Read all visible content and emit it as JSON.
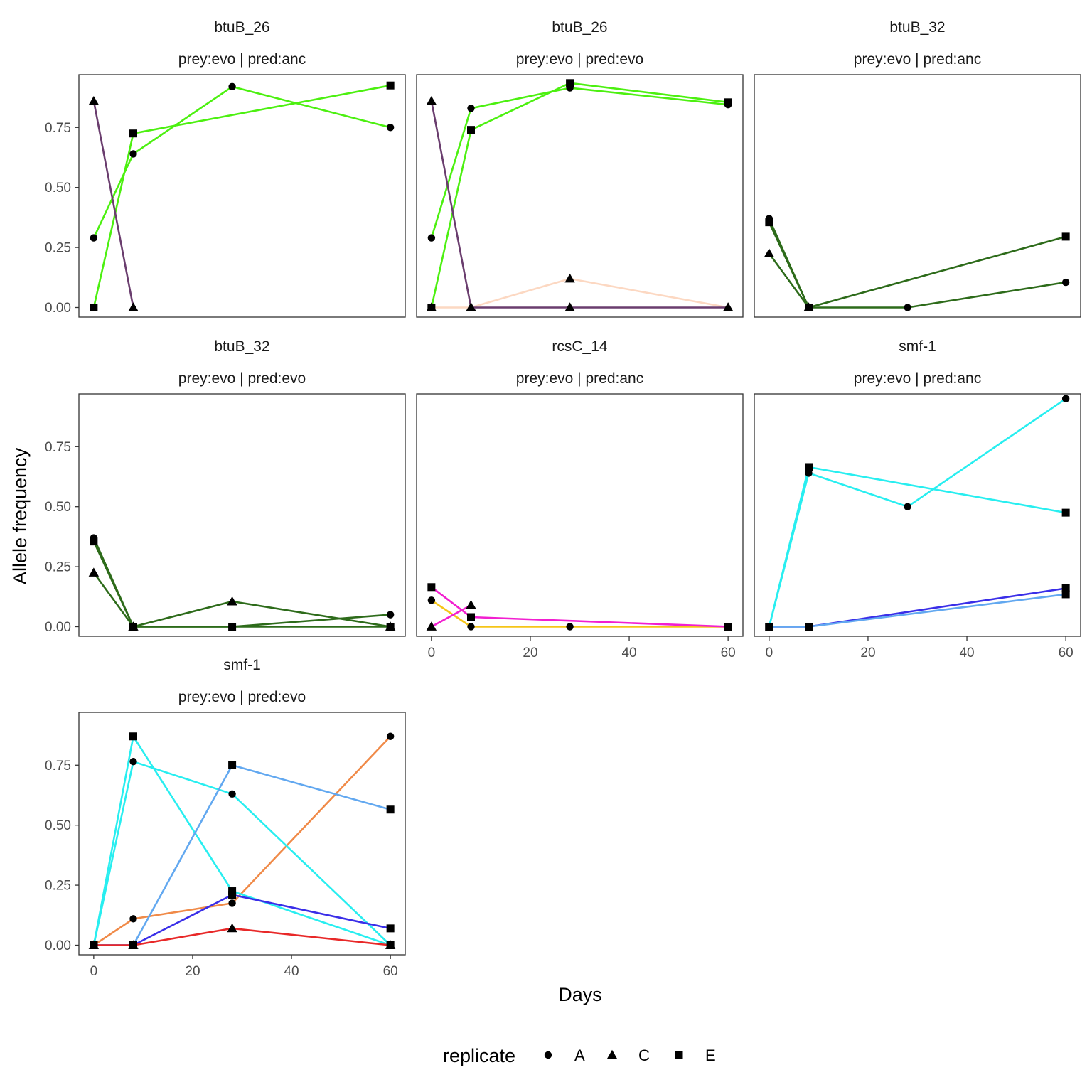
{
  "chart_data": {
    "type": "line",
    "xlabel": "Days",
    "ylabel": "Allele frequency",
    "xlim": [
      -3,
      63
    ],
    "ylim": [
      -0.04,
      0.97
    ],
    "x_ticks": [
      0,
      20,
      40,
      60
    ],
    "x_tick_labels": [
      "0",
      "20",
      "40",
      "60"
    ],
    "y_ticks": [
      0,
      0.25,
      0.5,
      0.75
    ],
    "y_tick_labels": [
      "0.00",
      "0.25",
      "0.50",
      "0.75"
    ],
    "grid": false,
    "legend": {
      "title": "replicate",
      "position": "bottom",
      "entries": [
        {
          "label": "A",
          "shape": "circle"
        },
        {
          "label": "C",
          "shape": "triangle"
        },
        {
          "label": "E",
          "shape": "square"
        }
      ]
    },
    "panels": [
      {
        "gene": "btuB_26",
        "condition": "prey:evo | pred:anc",
        "series": [
          {
            "color": "#4cf010",
            "shape": "circle",
            "x": [
              0,
              8,
              28,
              60
            ],
            "y": [
              0.29,
              0.64,
              0.92,
              0.75
            ]
          },
          {
            "color": "#4cf010",
            "shape": "square",
            "x": [
              0,
              8,
              60
            ],
            "y": [
              0.0,
              0.725,
              0.925
            ]
          },
          {
            "color": "#6a3d6e",
            "shape": "triangle",
            "x": [
              0,
              8
            ],
            "y": [
              0.86,
              0.0
            ]
          }
        ]
      },
      {
        "gene": "btuB_26",
        "condition": "prey:evo | pred:evo",
        "series": [
          {
            "color": "#fcd8c2",
            "shape": "triangle",
            "x": [
              0,
              8,
              28,
              60
            ],
            "y": [
              0.0,
              0.0,
              0.12,
              0.0
            ]
          },
          {
            "color": "#4cf010",
            "shape": "circle",
            "x": [
              0,
              8,
              28,
              60
            ],
            "y": [
              0.29,
              0.83,
              0.915,
              0.845
            ]
          },
          {
            "color": "#4cf010",
            "shape": "square",
            "x": [
              0,
              8,
              28,
              60
            ],
            "y": [
              0.0,
              0.74,
              0.935,
              0.855
            ]
          },
          {
            "color": "#6a3d6e",
            "shape": "triangle",
            "x": [
              0,
              8,
              28,
              60
            ],
            "y": [
              0.86,
              0.0,
              0.0,
              0.0
            ]
          }
        ]
      },
      {
        "gene": "btuB_32",
        "condition": "prey:evo | pred:anc",
        "series": [
          {
            "color": "#2d6b1a",
            "shape": "circle",
            "x": [
              0,
              8,
              28,
              60
            ],
            "y": [
              0.37,
              0.0,
              0.0,
              0.105
            ]
          },
          {
            "color": "#2d6b1a",
            "shape": "triangle",
            "x": [
              0,
              8
            ],
            "y": [
              0.225,
              0.0
            ]
          },
          {
            "color": "#2d6b1a",
            "shape": "square",
            "x": [
              0,
              8,
              60
            ],
            "y": [
              0.355,
              0.0,
              0.295
            ]
          }
        ]
      },
      {
        "gene": "btuB_32",
        "condition": "prey:evo | pred:evo",
        "series": [
          {
            "color": "#2d6b1a",
            "shape": "circle",
            "x": [
              0,
              8,
              28,
              60
            ],
            "y": [
              0.37,
              0.0,
              0.0,
              0.05
            ]
          },
          {
            "color": "#2d6b1a",
            "shape": "triangle",
            "x": [
              0,
              8,
              28,
              60
            ],
            "y": [
              0.225,
              0.0,
              0.105,
              0.0
            ]
          },
          {
            "color": "#2d6b1a",
            "shape": "square",
            "x": [
              0,
              8,
              28,
              60
            ],
            "y": [
              0.355,
              0.0,
              0.0,
              0.0
            ]
          }
        ]
      },
      {
        "gene": "rcsC_14",
        "condition": "prey:evo | pred:anc",
        "series": [
          {
            "color": "#f5c518",
            "shape": "circle",
            "x": [
              0,
              8,
              28,
              60
            ],
            "y": [
              0.11,
              0.0,
              0.0,
              0.0
            ]
          },
          {
            "color": "#f21fd0",
            "shape": "triangle",
            "x": [
              0,
              8
            ],
            "y": [
              0.0,
              0.09
            ]
          },
          {
            "color": "#f21fd0",
            "shape": "square",
            "x": [
              0,
              8,
              60
            ],
            "y": [
              0.165,
              0.04,
              0.0
            ]
          }
        ]
      },
      {
        "gene": "smf-1",
        "condition": "prey:evo | pred:anc",
        "series": [
          {
            "color": "#28eef0",
            "shape": "circle",
            "x": [
              0,
              8,
              28,
              60
            ],
            "y": [
              0.0,
              0.64,
              0.5,
              0.95
            ]
          },
          {
            "color": "#28eef0",
            "shape": "square",
            "x": [
              0,
              8,
              60
            ],
            "y": [
              0.0,
              0.665,
              0.475
            ]
          },
          {
            "color": "#3a2ee8",
            "shape": "square",
            "x": [
              0,
              8,
              60
            ],
            "y": [
              0.0,
              0.0,
              0.16
            ]
          },
          {
            "color": "#62a8f0",
            "shape": "square",
            "x": [
              0,
              8,
              60
            ],
            "y": [
              0.0,
              0.0,
              0.135
            ]
          }
        ]
      },
      {
        "gene": "smf-1",
        "condition": "prey:evo | pred:evo",
        "series": [
          {
            "color": "#f08a48",
            "shape": "circle",
            "x": [
              0,
              8,
              28,
              60
            ],
            "y": [
              0.0,
              0.11,
              0.175,
              0.87
            ]
          },
          {
            "color": "#28eef0",
            "shape": "circle",
            "x": [
              0,
              8,
              28,
              60
            ],
            "y": [
              0.0,
              0.765,
              0.63,
              0.0
            ]
          },
          {
            "color": "#28eef0",
            "shape": "square",
            "x": [
              0,
              8,
              28,
              60
            ],
            "y": [
              0.0,
              0.87,
              0.225,
              0.0
            ]
          },
          {
            "color": "#62a8f0",
            "shape": "square",
            "x": [
              0,
              8,
              28,
              60
            ],
            "y": [
              0.0,
              0.0,
              0.75,
              0.565
            ]
          },
          {
            "color": "#3a2ee8",
            "shape": "square",
            "x": [
              0,
              8,
              28,
              60
            ],
            "y": [
              0.0,
              0.0,
              0.21,
              0.07
            ]
          },
          {
            "color": "#e82828",
            "shape": "triangle",
            "x": [
              0,
              8,
              28,
              60
            ],
            "y": [
              0.0,
              0.0,
              0.07,
              0.0
            ]
          }
        ]
      }
    ]
  }
}
